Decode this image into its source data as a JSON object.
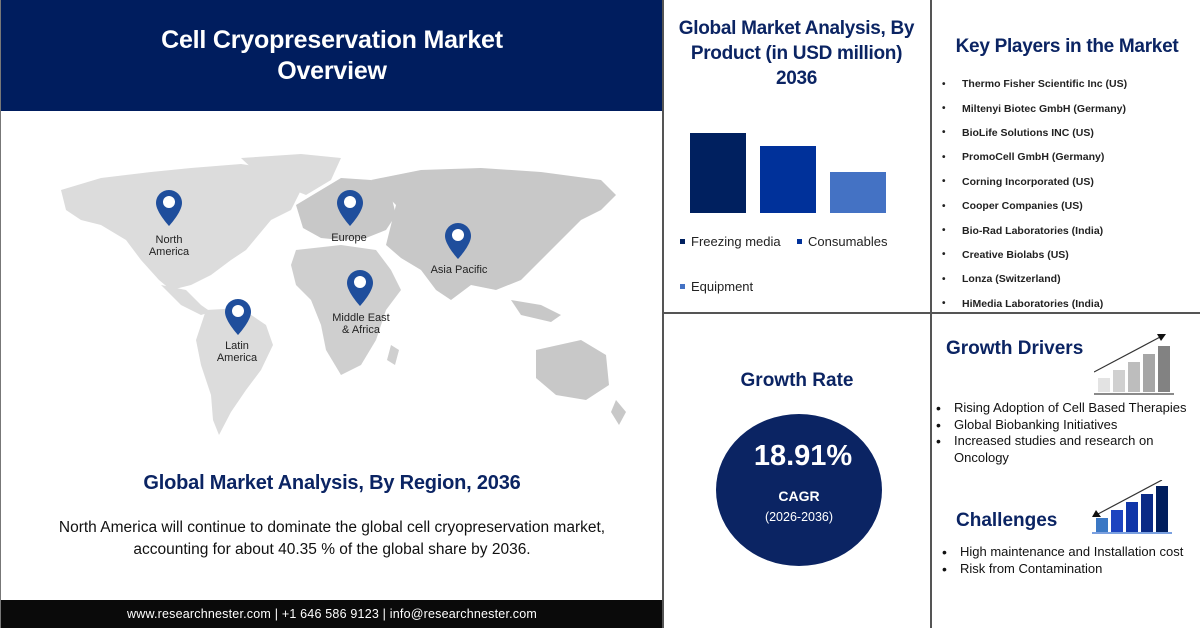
{
  "header": {
    "title": "Cell Cryopreservation Market Overview"
  },
  "map": {
    "pins": [
      {
        "label_line1": "North",
        "label_line2": "America"
      },
      {
        "label_line1": "Europe",
        "label_line2": ""
      },
      {
        "label_line1": "Asia Pacific",
        "label_line2": ""
      },
      {
        "label_line1": "Middle East",
        "label_line2": "& Africa"
      },
      {
        "label_line1": "Latin",
        "label_line2": "America"
      }
    ],
    "pin_color": "#1f4e9c",
    "land_color": "#d4d4d4"
  },
  "region": {
    "title": "Global Market Analysis, By Region, 2036",
    "description": "North America will continue to dominate the global cell cryopreservation market, accounting for about 40.35 % of the global share by 2036."
  },
  "footer": {
    "text": "www.researchnester.com | +1 646 586 9123 | info@researchnester.com"
  },
  "product": {
    "title": "Global Market Analysis, By Product (in USD million) 2036",
    "legend": [
      "Freezing media",
      "Consumables",
      "Equipment"
    ]
  },
  "chart_data": {
    "type": "bar",
    "title": "Global Market Analysis, By Product (in USD million) 2036",
    "categories": [
      "Freezing media",
      "Consumables",
      "Equipment"
    ],
    "values": [
      80,
      67,
      41
    ],
    "value_note": "relative bar heights (no axis shown)",
    "colors": [
      "#00205f",
      "#00319a",
      "#4472c4"
    ],
    "xlabel": "",
    "ylabel": "",
    "grid": false,
    "legend_position": "bottom"
  },
  "players": {
    "title": "Key Players in the Market",
    "items": [
      "Thermo Fisher Scientific Inc (US)",
      "Miltenyi Biotec GmbH (Germany)",
      "BioLife Solutions INC (US)",
      "PromoCell GmbH (Germany)",
      "Corning Incorporated (US)",
      "Cooper Companies (US)",
      "Bio-Rad Laboratories (India)",
      "Creative Biolabs (US)",
      "Lonza (Switzerland)",
      "HiMedia Laboratories (India)"
    ]
  },
  "growth": {
    "title": "Growth Rate",
    "value": "18.91%",
    "label": "CAGR",
    "period": "(2026-2036)"
  },
  "drivers": {
    "title": "Growth Drivers",
    "items": [
      "Rising Adoption of Cell Based Therapies",
      "Global Biobanking Initiatives",
      "Increased studies and research on Oncology"
    ]
  },
  "challenges": {
    "title": "Challenges",
    "items": [
      "High maintenance and Installation cost",
      "Risk from Contamination"
    ]
  },
  "colors": {
    "navy": "#0b2463",
    "header_bg": "#001d5e",
    "footer_bg": "#0a0a0a"
  }
}
